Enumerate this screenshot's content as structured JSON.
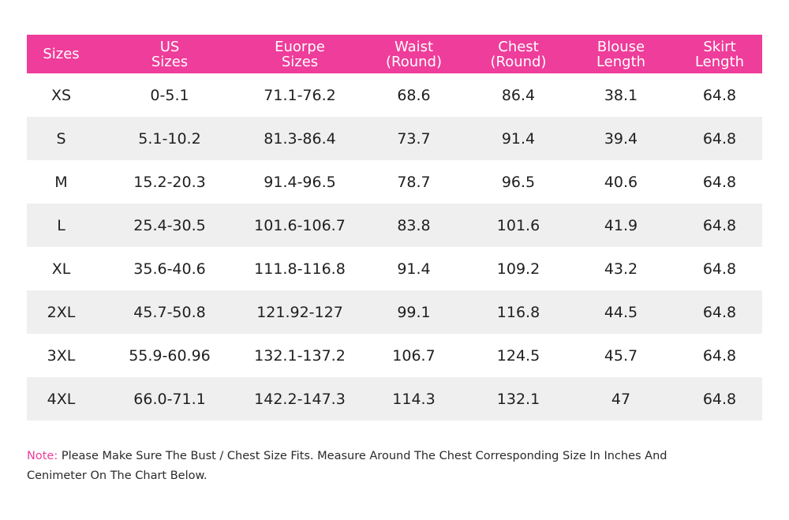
{
  "table": {
    "headers": [
      [
        "Sizes"
      ],
      [
        "US",
        "Sizes"
      ],
      [
        "Euorpe",
        "Sizes"
      ],
      [
        "Waist",
        "(Round)"
      ],
      [
        "Chest",
        "(Round)"
      ],
      [
        "Blouse",
        "Length"
      ],
      [
        "Skirt",
        "Length"
      ]
    ],
    "rows": [
      [
        "XS",
        "0-5.1",
        "71.1-76.2",
        "68.6",
        "86.4",
        "38.1",
        "64.8"
      ],
      [
        "S",
        "5.1-10.2",
        "81.3-86.4",
        "73.7",
        "91.4",
        "39.4",
        "64.8"
      ],
      [
        "M",
        "15.2-20.3",
        "91.4-96.5",
        "78.7",
        "96.5",
        "40.6",
        "64.8"
      ],
      [
        "L",
        "25.4-30.5",
        "101.6-106.7",
        "83.8",
        "101.6",
        "41.9",
        "64.8"
      ],
      [
        "XL",
        "35.6-40.6",
        "111.8-116.8",
        "91.4",
        "109.2",
        "43.2",
        "64.8"
      ],
      [
        "2XL",
        "45.7-50.8",
        "121.92-127",
        "99.1",
        "116.8",
        "44.5",
        "64.8"
      ],
      [
        "3XL",
        "55.9-60.96",
        "132.1-137.2",
        "106.7",
        "124.5",
        "45.7",
        "64.8"
      ],
      [
        "4XL",
        "66.0-71.1",
        "142.2-147.3",
        "114.3",
        "132.1",
        "47",
        "64.8"
      ]
    ]
  },
  "note": {
    "label": "Note:",
    "line1": "Please Make Sure The Bust / Chest Size Fits. Measure Around The Chest Corresponding Size In Inches And",
    "line2": "Cenimeter On The Chart Below."
  },
  "colors": {
    "header_bg": "#ee3d9a",
    "header_text": "#ffffff",
    "stripe_bg": "#efefef",
    "note_label": "#ee3d9a"
  }
}
